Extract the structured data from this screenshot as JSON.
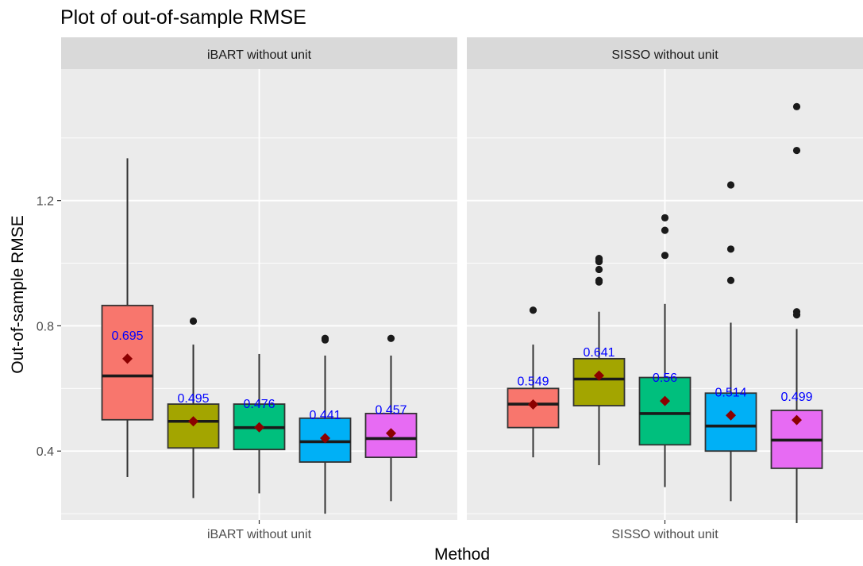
{
  "chart_data": {
    "type": "boxplot",
    "title": "Plot of out-of-sample RMSE",
    "xlabel": "Method",
    "ylabel": "Out-of-sample RMSE",
    "ylim": [
      0.18,
      1.62
    ],
    "y_ticks": [
      0.4,
      0.8,
      1.2
    ],
    "grid": true,
    "legend": "none",
    "panels": [
      {
        "strip_label": "iBART without unit",
        "x_tick_label": "iBART without unit",
        "boxes": [
          {
            "color": "#F8766D",
            "lower_whisker": 0.317,
            "q1": 0.5,
            "median": 0.64,
            "q3": 0.865,
            "upper_whisker": 1.335,
            "mean": 0.695,
            "mean_label": "0.695",
            "outliers": []
          },
          {
            "color": "#A3A500",
            "lower_whisker": 0.25,
            "q1": 0.41,
            "median": 0.495,
            "q3": 0.55,
            "upper_whisker": 0.74,
            "mean": 0.495,
            "mean_label": "0.495",
            "outliers": [
              0.815
            ]
          },
          {
            "color": "#00BF7D",
            "lower_whisker": 0.265,
            "q1": 0.405,
            "median": 0.475,
            "q3": 0.55,
            "upper_whisker": 0.71,
            "mean": 0.476,
            "mean_label": "0.476",
            "outliers": []
          },
          {
            "color": "#00B0F6",
            "lower_whisker": 0.2,
            "q1": 0.365,
            "median": 0.43,
            "q3": 0.505,
            "upper_whisker": 0.705,
            "mean": 0.441,
            "mean_label": "0.441",
            "outliers": [
              0.755,
              0.76
            ]
          },
          {
            "color": "#E76BF3",
            "lower_whisker": 0.24,
            "q1": 0.38,
            "median": 0.44,
            "q3": 0.52,
            "upper_whisker": 0.705,
            "mean": 0.457,
            "mean_label": "0.457",
            "outliers": [
              0.76
            ]
          }
        ]
      },
      {
        "strip_label": "SISSO without unit",
        "x_tick_label": "SISSO without unit",
        "boxes": [
          {
            "color": "#F8766D",
            "lower_whisker": 0.38,
            "q1": 0.475,
            "median": 0.55,
            "q3": 0.6,
            "upper_whisker": 0.74,
            "mean": 0.549,
            "mean_label": "0.549",
            "outliers": [
              0.85
            ]
          },
          {
            "color": "#A3A500",
            "lower_whisker": 0.355,
            "q1": 0.545,
            "median": 0.63,
            "q3": 0.695,
            "upper_whisker": 0.845,
            "mean": 0.641,
            "mean_label": "0.641",
            "outliers": [
              0.94,
              0.945,
              0.98,
              1.005,
              1.01,
              1.015
            ]
          },
          {
            "color": "#00BF7D",
            "lower_whisker": 0.285,
            "q1": 0.42,
            "median": 0.52,
            "q3": 0.635,
            "upper_whisker": 0.87,
            "mean": 0.56,
            "mean_label": "0.56",
            "outliers": [
              1.025,
              1.105,
              1.145
            ]
          },
          {
            "color": "#00B0F6",
            "lower_whisker": 0.24,
            "q1": 0.4,
            "median": 0.48,
            "q3": 0.585,
            "upper_whisker": 0.81,
            "mean": 0.514,
            "mean_label": "0.514",
            "outliers": [
              0.945,
              1.045,
              1.25
            ]
          },
          {
            "color": "#E76BF3",
            "lower_whisker": 0.17,
            "q1": 0.345,
            "median": 0.435,
            "q3": 0.53,
            "upper_whisker": 0.79,
            "mean": 0.499,
            "mean_label": "0.499",
            "outliers": [
              0.835,
              0.845,
              1.36,
              1.5
            ]
          }
        ]
      }
    ],
    "mean_marker_color": "#8B0000",
    "mean_label_color": "#0000FF"
  }
}
